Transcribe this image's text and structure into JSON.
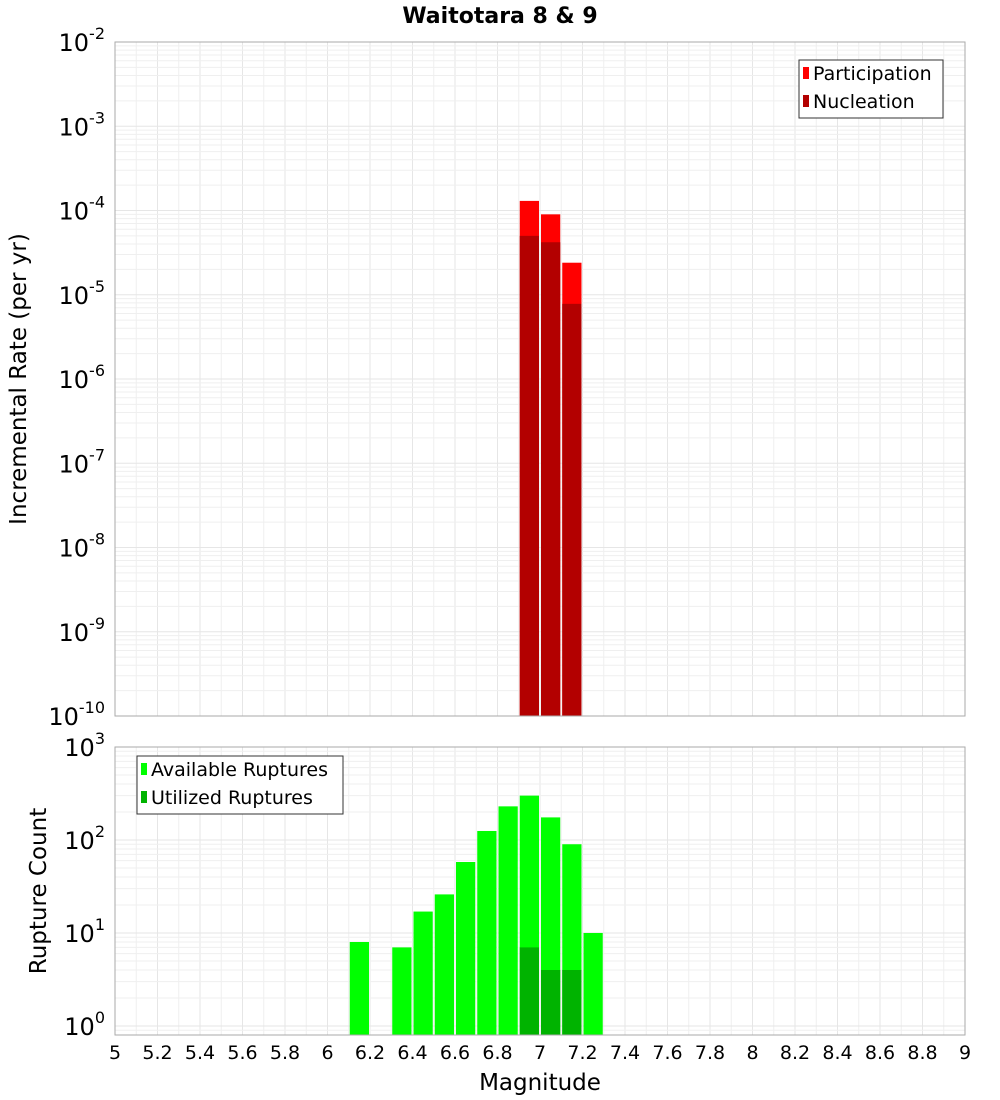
{
  "chart_data": [
    {
      "type": "bar",
      "id": "top",
      "title": "Waitotara 8 & 9",
      "xlabel": "Magnitude",
      "ylabel": "Incremental Rate (per yr)",
      "yscale": "log",
      "ylim": [
        1e-10,
        0.01
      ],
      "xlim": [
        5,
        9
      ],
      "bin_width": 0.1,
      "grid": true,
      "legend_position": "top-right",
      "series": [
        {
          "name": "Participation",
          "color": "#ff0000",
          "x": [
            6.95,
            7.05,
            7.15
          ],
          "values": [
            0.00013,
            9e-05,
            2.4e-05
          ]
        },
        {
          "name": "Nucleation",
          "color": "#b30000",
          "x": [
            6.95,
            7.05,
            7.15
          ],
          "values": [
            5e-05,
            4.2e-05,
            7.8e-06
          ]
        }
      ],
      "y_ticks": [
        {
          "base": "10",
          "exp": "-10",
          "value": 1e-10
        },
        {
          "base": "10",
          "exp": "-9",
          "value": 1e-09
        },
        {
          "base": "10",
          "exp": "-8",
          "value": 1e-08
        },
        {
          "base": "10",
          "exp": "-7",
          "value": 1e-07
        },
        {
          "base": "10",
          "exp": "-6",
          "value": 1e-06
        },
        {
          "base": "10",
          "exp": "-5",
          "value": 1e-05
        },
        {
          "base": "10",
          "exp": "-4",
          "value": 0.0001
        },
        {
          "base": "10",
          "exp": "-3",
          "value": 0.001
        },
        {
          "base": "10",
          "exp": "-2",
          "value": 0.01
        }
      ]
    },
    {
      "type": "bar",
      "id": "bottom",
      "xlabel": "Magnitude",
      "ylabel": "Rupture Count",
      "yscale": "log",
      "ylim": [
        0.8,
        1000
      ],
      "xlim": [
        5,
        9
      ],
      "bin_width": 0.1,
      "grid": true,
      "legend_position": "top-left",
      "series": [
        {
          "name": "Available Ruptures",
          "color": "#00ff00",
          "x": [
            6.15,
            6.35,
            6.45,
            6.55,
            6.65,
            6.75,
            6.85,
            6.95,
            7.05,
            7.15,
            7.25
          ],
          "values": [
            8,
            7,
            17,
            26,
            58,
            125,
            230,
            300,
            175,
            90,
            10
          ]
        },
        {
          "name": "Utilized Ruptures",
          "color": "#00b300",
          "x": [
            6.95,
            7.05,
            7.15
          ],
          "values": [
            7,
            4,
            4
          ]
        }
      ],
      "y_ticks": [
        {
          "base": "10",
          "exp": "0",
          "value": 1
        },
        {
          "base": "10",
          "exp": "1",
          "value": 10
        },
        {
          "base": "10",
          "exp": "2",
          "value": 100
        },
        {
          "base": "10",
          "exp": "3",
          "value": 1000
        }
      ],
      "x_ticks": [
        "5",
        "5.2",
        "5.4",
        "5.6",
        "5.8",
        "6",
        "6.2",
        "6.4",
        "6.6",
        "6.8",
        "7",
        "7.2",
        "7.4",
        "7.6",
        "7.8",
        "8",
        "8.2",
        "8.4",
        "8.6",
        "8.8",
        "9"
      ]
    }
  ]
}
